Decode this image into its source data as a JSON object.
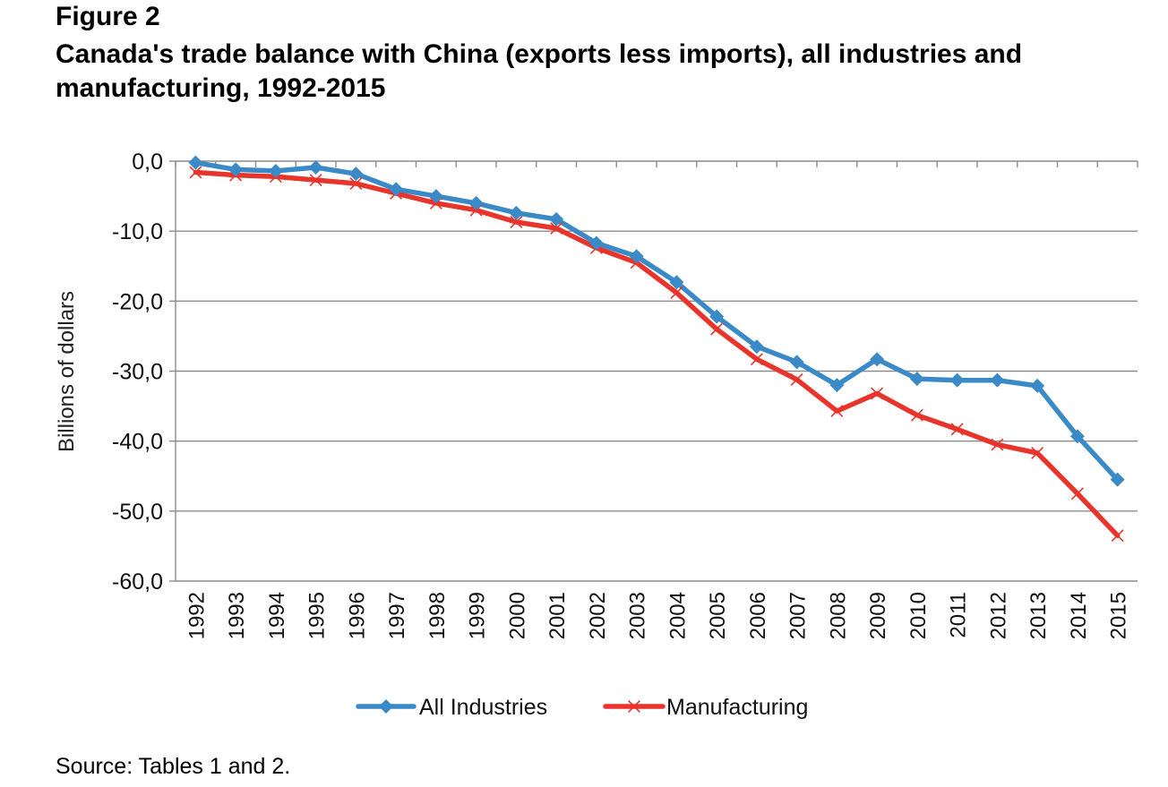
{
  "figure_label": "Figure 2",
  "title": "Canada's trade balance with China (exports less imports), all industries and manufacturing, 1992-2015",
  "source": "Source: Tables 1 and 2.",
  "chart_data": {
    "type": "line",
    "title": "Canada's trade balance with China (exports less imports), all industries and manufacturing, 1992-2015",
    "xlabel": "",
    "ylabel": "Billions of dollars",
    "ylim": [
      -60,
      0
    ],
    "yticks": [
      0,
      -10,
      -20,
      -30,
      -40,
      -50,
      -60
    ],
    "ytick_labels": [
      "0,0",
      "-10,0",
      "-20,0",
      "-30,0",
      "-40,0",
      "-50,0",
      "-60,0"
    ],
    "grid": true,
    "legend_position": "bottom",
    "categories": [
      "1992",
      "1993",
      "1994",
      "1995",
      "1996",
      "1997",
      "1998",
      "1999",
      "2000",
      "2001",
      "2002",
      "2003",
      "2004",
      "2005",
      "2006",
      "2007",
      "2008",
      "2009",
      "2010",
      "2011",
      "2012",
      "2013",
      "2014",
      "2015"
    ],
    "series": [
      {
        "name": "All Industries",
        "color": "#3a8ac8",
        "marker": "diamond",
        "values": [
          -0.2,
          -1.2,
          -1.4,
          -0.9,
          -1.8,
          -4.0,
          -5.0,
          -6.0,
          -7.4,
          -8.3,
          -11.7,
          -13.6,
          -17.3,
          -22.2,
          -26.5,
          -28.7,
          -32.0,
          -28.3,
          -31.1,
          -31.3,
          -31.3,
          -32.1,
          -39.3,
          -45.5
        ]
      },
      {
        "name": "Manufacturing",
        "color": "#e8342a",
        "marker": "x",
        "values": [
          -1.6,
          -2.0,
          -2.2,
          -2.7,
          -3.2,
          -4.6,
          -6.0,
          -7.0,
          -8.7,
          -9.6,
          -12.4,
          -14.5,
          -18.8,
          -24.0,
          -28.3,
          -31.2,
          -35.7,
          -33.2,
          -36.3,
          -38.3,
          -40.5,
          -41.7,
          -47.5,
          -53.5
        ]
      }
    ]
  }
}
